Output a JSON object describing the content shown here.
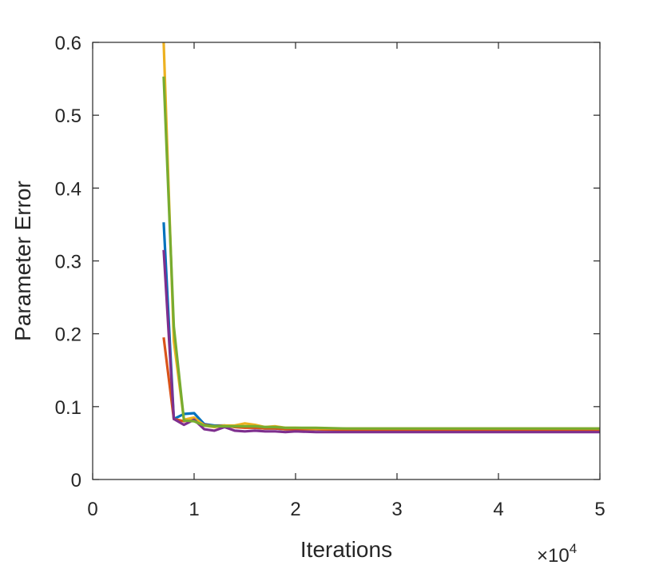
{
  "chart_data": {
    "type": "line",
    "title": "",
    "xlabel": "Iterations",
    "ylabel": "Parameter Error",
    "x_exponent": {
      "times": "×",
      "base": "10",
      "power": "4"
    },
    "xlim": [
      0,
      50000
    ],
    "ylim": [
      0,
      0.6
    ],
    "xticks": [
      0,
      10000,
      20000,
      30000,
      40000,
      50000
    ],
    "xtick_labels": [
      "0",
      "1",
      "2",
      "3",
      "4",
      "5"
    ],
    "yticks": [
      0,
      0.1,
      0.2,
      0.3,
      0.4,
      0.5,
      0.6
    ],
    "ytick_labels": [
      "0",
      "0.1",
      "0.2",
      "0.3",
      "0.4",
      "0.5",
      "0.6"
    ],
    "grid": false,
    "box": true,
    "x": [
      7000,
      8000,
      9000,
      10000,
      11000,
      12000,
      13000,
      14000,
      15000,
      16000,
      17000,
      18000,
      19000,
      20000,
      22000,
      25000,
      30000,
      35000,
      40000,
      45000,
      50000
    ],
    "series": [
      {
        "color": "#0072bd",
        "values": [
          0.353,
          0.083,
          0.09,
          0.091,
          0.076,
          0.074,
          0.074,
          0.073,
          0.072,
          0.071,
          0.07,
          0.07,
          0.069,
          0.069,
          0.069,
          0.068,
          0.068,
          0.068,
          0.068,
          0.068,
          0.068
        ]
      },
      {
        "color": "#d95319",
        "values": [
          0.195,
          0.083,
          0.08,
          0.083,
          0.075,
          0.073,
          0.074,
          0.072,
          0.071,
          0.071,
          0.07,
          0.07,
          0.069,
          0.069,
          0.069,
          0.068,
          0.068,
          0.068,
          0.068,
          0.068,
          0.068
        ]
      },
      {
        "color": "#edb120",
        "values": [
          0.6,
          0.19,
          0.082,
          0.085,
          0.074,
          0.072,
          0.074,
          0.074,
          0.077,
          0.075,
          0.072,
          0.073,
          0.071,
          0.071,
          0.07,
          0.07,
          0.07,
          0.07,
          0.07,
          0.07,
          0.07
        ]
      },
      {
        "color": "#7e2f8e",
        "values": [
          0.315,
          0.083,
          0.075,
          0.082,
          0.069,
          0.067,
          0.072,
          0.067,
          0.066,
          0.067,
          0.066,
          0.066,
          0.065,
          0.066,
          0.065,
          0.065,
          0.065,
          0.065,
          0.065,
          0.065,
          0.065
        ]
      },
      {
        "color": "#77ac30",
        "values": [
          0.553,
          0.21,
          0.081,
          0.08,
          0.074,
          0.073,
          0.073,
          0.073,
          0.073,
          0.073,
          0.072,
          0.072,
          0.071,
          0.071,
          0.071,
          0.07,
          0.07,
          0.07,
          0.07,
          0.07,
          0.07
        ]
      }
    ]
  }
}
